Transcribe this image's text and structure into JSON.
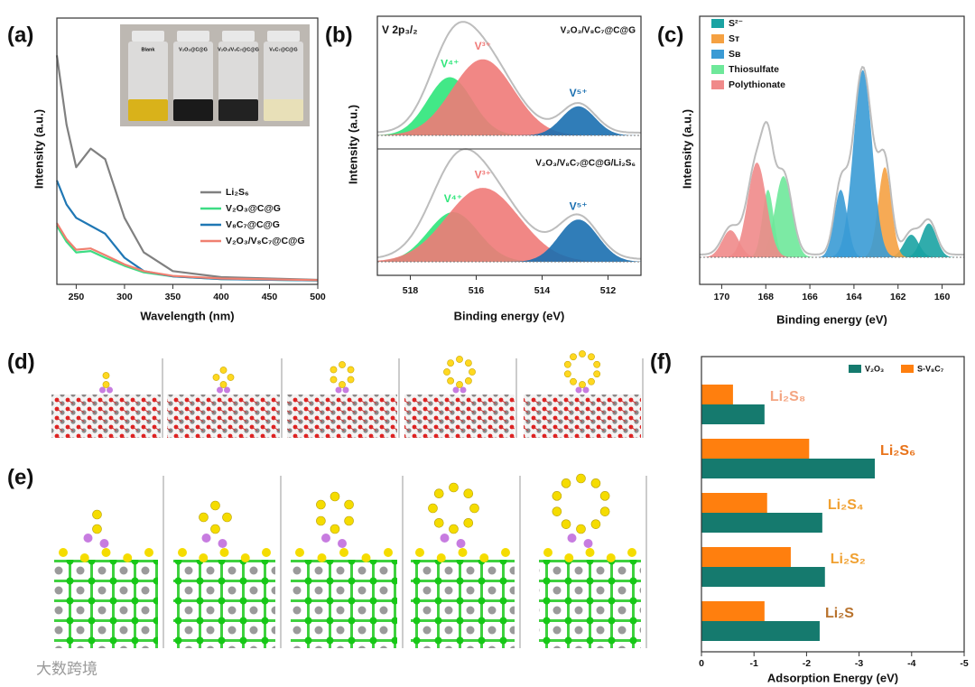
{
  "chart_data": [
    {
      "type": "line",
      "label": "(a)",
      "xlabel": "Wavelength (nm)",
      "ylabel": "Intensity (a.u.)",
      "x": [
        230,
        240,
        250,
        265,
        280,
        300,
        320,
        350,
        400,
        500
      ],
      "xlim": [
        230,
        500
      ],
      "xticks": [
        250,
        300,
        350,
        400,
        450,
        500
      ],
      "ylim": [
        0,
        10
      ],
      "series": [
        {
          "name": "Li₂S₆",
          "color": "#808080",
          "values": [
            8.6,
            6.0,
            4.4,
            5.1,
            4.7,
            2.5,
            1.2,
            0.5,
            0.27,
            0.17
          ]
        },
        {
          "name": "V₂O₃@C@G",
          "color": "#3ddc84",
          "values": [
            2.2,
            1.6,
            1.2,
            1.25,
            1.0,
            0.7,
            0.45,
            0.3,
            0.2,
            0.15
          ]
        },
        {
          "name": "V₈C₇@C@G",
          "color": "#1f77b4",
          "values": [
            3.9,
            3.0,
            2.5,
            2.2,
            1.9,
            1.0,
            0.5,
            0.3,
            0.2,
            0.15
          ]
        },
        {
          "name": "V₂O₃/V₈C₇@C@G",
          "color": "#f08070",
          "values": [
            2.3,
            1.7,
            1.3,
            1.35,
            1.1,
            0.75,
            0.5,
            0.32,
            0.22,
            0.16
          ]
        }
      ],
      "inset_labels": [
        "Blank",
        "V₂O₃@C@G",
        "V₂O₃/V₈C₇@C@G",
        "V₈C₇@C@G"
      ]
    },
    {
      "type": "xps_stack",
      "label": "(b)",
      "title": "V 2p₃/₂",
      "xlabel": "Binding energy (eV)",
      "ylabel": "Intensity (a.u.)",
      "xlim": [
        519,
        511
      ],
      "xticks": [
        518,
        516,
        514,
        512
      ],
      "ylim": [
        0,
        1
      ],
      "panels": [
        {
          "sample": "V₂O₃/V₈C₇@C@G",
          "series": [
            {
              "name": "V⁴⁺",
              "color": "#2ee67a",
              "peaks": [
                {
                  "center": 516.8,
                  "height": 0.52,
                  "fwhm": 1.6
                }
              ]
            },
            {
              "name": "V³⁺",
              "color": "#f07a78",
              "peaks": [
                {
                  "center": 515.8,
                  "height": 0.68,
                  "fwhm": 2.2
                }
              ]
            },
            {
              "name": "V⁵⁺",
              "color": "#1a6fb0",
              "peaks": [
                {
                  "center": 512.9,
                  "height": 0.26,
                  "fwhm": 1.2
                }
              ]
            }
          ]
        },
        {
          "sample": "V₂O₃/V₈C₇@C@G/Li₂S₆",
          "series": [
            {
              "name": "V⁴⁺",
              "color": "#2ee67a",
              "peaks": [
                {
                  "center": 516.7,
                  "height": 0.47,
                  "fwhm": 1.8
                }
              ]
            },
            {
              "name": "V³⁺",
              "color": "#f07a78",
              "peaks": [
                {
                  "center": 515.8,
                  "height": 0.7,
                  "fwhm": 2.6
                }
              ]
            },
            {
              "name": "V⁵⁺",
              "color": "#1a6fb0",
              "peaks": [
                {
                  "center": 512.9,
                  "height": 0.4,
                  "fwhm": 1.4
                }
              ]
            }
          ]
        }
      ]
    },
    {
      "type": "xps",
      "label": "(c)",
      "xlabel": "Binding energy (eV)",
      "ylabel": "Intensity (a.u.)",
      "xlim": [
        171,
        159
      ],
      "xticks": [
        170,
        168,
        166,
        164,
        162,
        160
      ],
      "ylim": [
        0,
        1
      ],
      "series": [
        {
          "name": "S²⁻",
          "color": "#1aa3a3",
          "peaks": [
            {
              "center": 161.4,
              "height": 0.1,
              "fwhm": 0.8
            },
            {
              "center": 160.6,
              "height": 0.15,
              "fwhm": 0.8
            }
          ]
        },
        {
          "name": "Sᴛ",
          "color": "#f5a142",
          "peaks": [
            {
              "center": 162.6,
              "height": 0.4,
              "fwhm": 0.7
            }
          ]
        },
        {
          "name": "Sʙ",
          "color": "#3a9bd5",
          "peaks": [
            {
              "center": 164.6,
              "height": 0.3,
              "fwhm": 0.7
            },
            {
              "center": 163.6,
              "height": 0.83,
              "fwhm": 1.0
            }
          ]
        },
        {
          "name": "Thiosulfate",
          "color": "#6ee89a",
          "peaks": [
            {
              "center": 167.9,
              "height": 0.3,
              "fwhm": 0.6
            },
            {
              "center": 167.2,
              "height": 0.36,
              "fwhm": 0.9
            }
          ]
        },
        {
          "name": "Polythionate",
          "color": "#f08a8a",
          "peaks": [
            {
              "center": 169.6,
              "height": 0.12,
              "fwhm": 0.9
            },
            {
              "center": 168.4,
              "height": 0.42,
              "fwhm": 1.0
            }
          ]
        }
      ]
    },
    {
      "type": "hbar",
      "label": "(f)",
      "xlabel": "Adsorption Energy (eV)",
      "categories": [
        "Li₂S₈",
        "Li₂S₆",
        "Li₂S₄",
        "Li₂S₂",
        "Li₂S"
      ],
      "category_colors": [
        "#f4a582",
        "#e8731a",
        "#f0a030",
        "#f0a030",
        "#b8722c"
      ],
      "xlim": [
        0,
        -5
      ],
      "xticks": [
        0,
        -1,
        -2,
        -3,
        -4,
        -5
      ],
      "series": [
        {
          "name": "V₂O₃",
          "color": "#157a6e",
          "values": [
            -1.2,
            -3.3,
            -2.3,
            -2.35,
            -2.25
          ]
        },
        {
          "name": "S-V₈C₇",
          "color": "#ff7f0e",
          "values": [
            -0.6,
            -2.05,
            -1.25,
            -1.7,
            -1.2
          ]
        }
      ]
    }
  ],
  "structure_panels": [
    {
      "label": "(d)"
    },
    {
      "label": "(e)"
    }
  ],
  "watermark": "大数跨境"
}
